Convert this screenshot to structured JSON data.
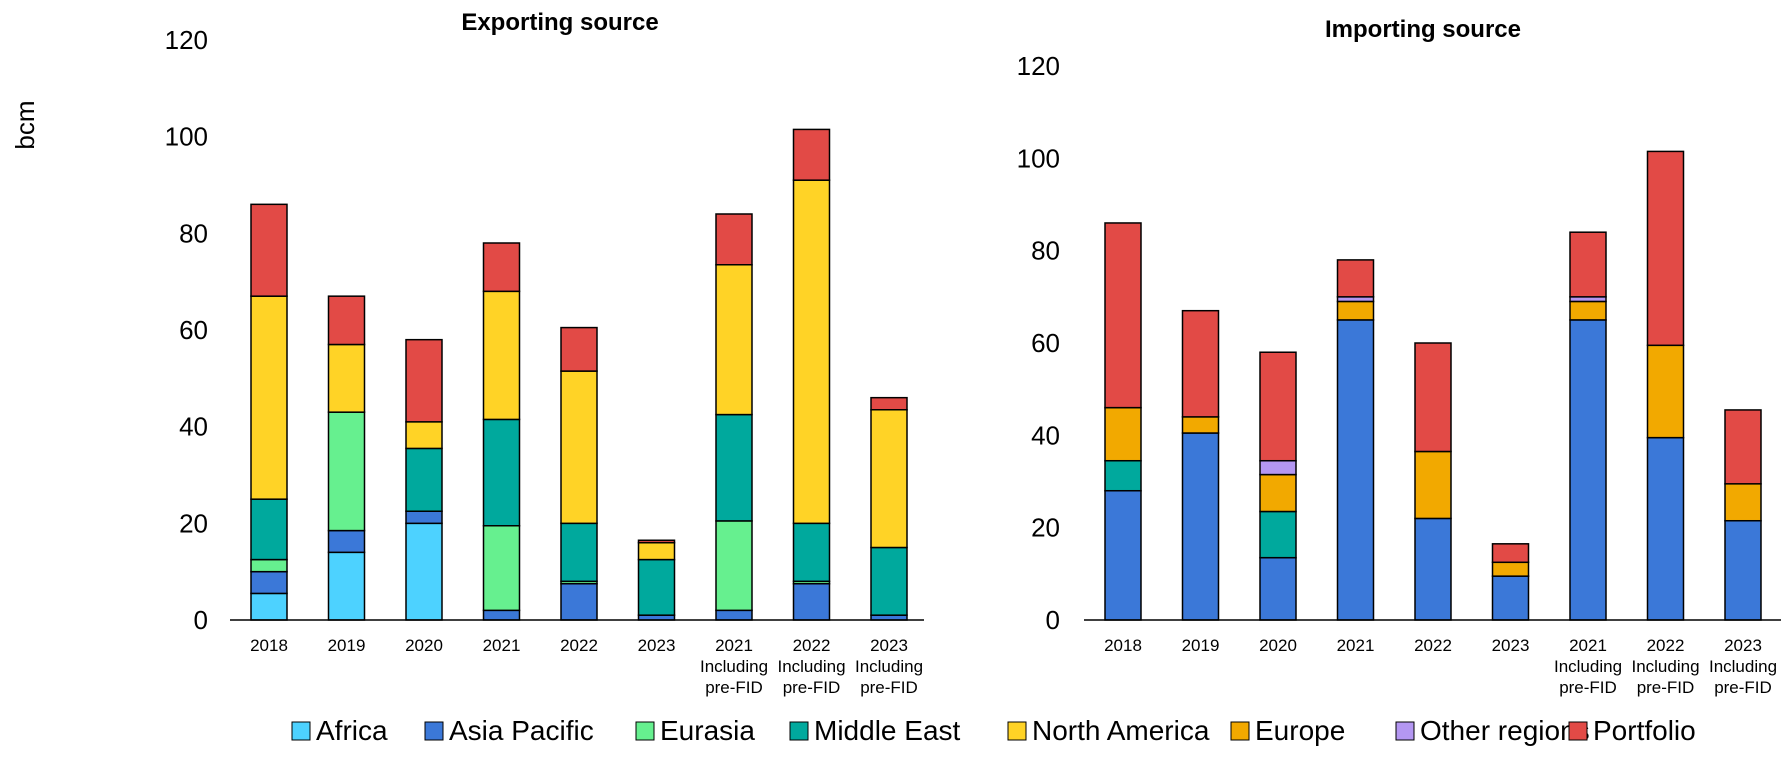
{
  "unit_label": "bcm",
  "legend": [
    {
      "name": "Africa",
      "color": "#4dd2ff"
    },
    {
      "name": "Asia Pacific",
      "color": "#3b78d8"
    },
    {
      "name": "Eurasia",
      "color": "#66f08f"
    },
    {
      "name": "Middle East",
      "color": "#00a99d"
    },
    {
      "name": "North America",
      "color": "#ffd326"
    },
    {
      "name": "Europe",
      "color": "#f2a900"
    },
    {
      "name": "Other regions",
      "color": "#b497f2"
    },
    {
      "name": "Portfolio",
      "color": "#e24a46"
    }
  ],
  "chart_data": [
    {
      "type": "bar",
      "stacked": true,
      "title": "Exporting source",
      "ylabel": "bcm",
      "ylim": [
        0,
        120
      ],
      "yticks": [
        0,
        20,
        40,
        60,
        80,
        100,
        120
      ],
      "categories": [
        [
          "2018"
        ],
        [
          "2019"
        ],
        [
          "2020"
        ],
        [
          "2021"
        ],
        [
          "2022"
        ],
        [
          "2023"
        ],
        [
          "2021",
          "Including",
          "pre-FID"
        ],
        [
          "2022",
          "Including",
          "pre-FID"
        ],
        [
          "2023",
          "Including",
          "pre-FID"
        ]
      ],
      "series": [
        {
          "name": "Africa",
          "color": "#4dd2ff",
          "values": [
            5.5,
            14,
            20,
            0,
            0,
            0,
            0,
            0,
            0
          ]
        },
        {
          "name": "Asia Pacific",
          "color": "#3b78d8",
          "values": [
            4.5,
            4.5,
            2.5,
            2,
            7.5,
            1,
            2,
            7.5,
            1
          ]
        },
        {
          "name": "Eurasia",
          "color": "#66f08f",
          "values": [
            2.5,
            24.5,
            0,
            17.5,
            0.5,
            0,
            18.5,
            0.5,
            0
          ]
        },
        {
          "name": "Middle East",
          "color": "#00a99d",
          "values": [
            12.5,
            0,
            13,
            22,
            12,
            11.5,
            22,
            12,
            14
          ]
        },
        {
          "name": "North America",
          "color": "#ffd326",
          "values": [
            42,
            14,
            5.5,
            26.5,
            31.5,
            3.5,
            31,
            71,
            28.5
          ]
        },
        {
          "name": "Portfolio",
          "color": "#e24a46",
          "values": [
            19,
            10,
            17,
            10,
            9,
            0.5,
            10.5,
            10.5,
            2.5
          ]
        }
      ]
    },
    {
      "type": "bar",
      "stacked": true,
      "title": "Importing source",
      "ylim": [
        0,
        120
      ],
      "yticks": [
        0,
        20,
        40,
        60,
        80,
        100,
        120
      ],
      "categories": [
        [
          "2018"
        ],
        [
          "2019"
        ],
        [
          "2020"
        ],
        [
          "2021"
        ],
        [
          "2022"
        ],
        [
          "2023"
        ],
        [
          "2021",
          "Including",
          "pre-FID"
        ],
        [
          "2022",
          "Including",
          "pre-FID"
        ],
        [
          "2023",
          "Including",
          "pre-FID"
        ]
      ],
      "series": [
        {
          "name": "Asia Pacific",
          "color": "#3b78d8",
          "values": [
            28,
            40.5,
            13.5,
            65,
            22,
            9.5,
            65,
            39.5,
            21.5
          ]
        },
        {
          "name": "Middle East",
          "color": "#00a99d",
          "values": [
            6.5,
            0,
            10,
            0,
            0,
            0,
            0,
            0,
            0
          ]
        },
        {
          "name": "Europe",
          "color": "#f2a900",
          "values": [
            11.5,
            3.5,
            8,
            4,
            14.5,
            3,
            4,
            20,
            8
          ]
        },
        {
          "name": "Other regions",
          "color": "#b497f2",
          "values": [
            0,
            0,
            3,
            1,
            0,
            0,
            1,
            0,
            0
          ]
        },
        {
          "name": "Portfolio",
          "color": "#e24a46",
          "values": [
            40,
            23,
            23.5,
            8,
            23.5,
            4,
            14,
            42,
            16
          ]
        }
      ]
    }
  ]
}
